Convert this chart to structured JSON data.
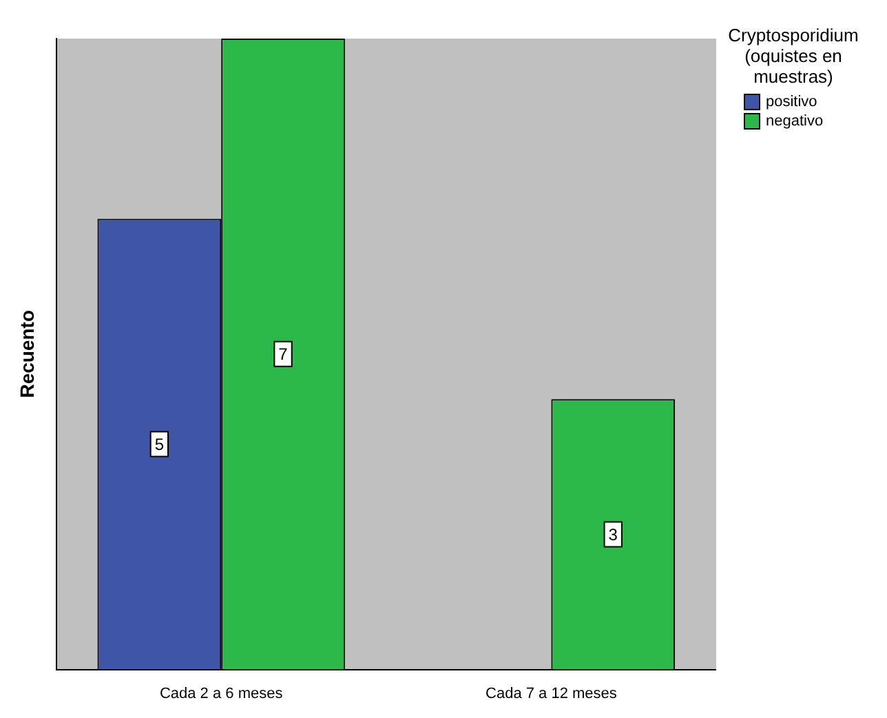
{
  "chart_data": {
    "type": "bar",
    "ylabel": "Recuento",
    "legend_title": "Cryptosporidium (oquistes en muestras)",
    "categories": [
      "Cada 2 a 6 meses",
      "Cada 7 a 12 meses"
    ],
    "series": [
      {
        "name": "positivo",
        "color": "#3f56a8",
        "values": [
          5,
          null
        ]
      },
      {
        "name": "negativo",
        "color": "#2db84a",
        "values": [
          7,
          3
        ]
      }
    ],
    "data_labels": true,
    "legend": "top right",
    "grid": false
  }
}
